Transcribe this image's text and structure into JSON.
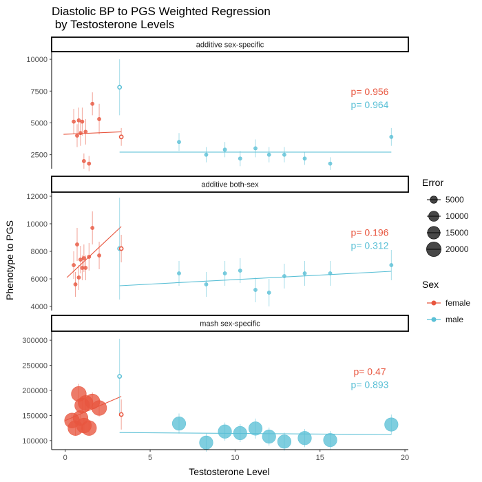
{
  "chart_data": {
    "type": "scatter",
    "title": [
      "Diastolic BP to PGS Weighted Regression",
      " by Testosterone Levels"
    ],
    "xlabel": "Testosterone Level",
    "ylabel": "Phenotype to PGS",
    "xlim": [
      -0.8,
      20.2
    ],
    "xticks": [
      0,
      5,
      10,
      15,
      20
    ],
    "grid": false,
    "colors": {
      "female": "#E8563F",
      "male": "#5BC0D6"
    },
    "legend": {
      "position": "right",
      "error": {
        "title": "Error",
        "entries": [
          {
            "label": "5000",
            "value": 5000
          },
          {
            "label": "10000",
            "value": 10000
          },
          {
            "label": "15000",
            "value": 15000
          },
          {
            "label": "20000",
            "value": 20000
          }
        ]
      },
      "sex": {
        "title": "Sex",
        "entries": [
          {
            "label": "female",
            "key": "female"
          },
          {
            "label": "male",
            "key": "male"
          }
        ]
      }
    },
    "panels": [
      {
        "strip": "additive sex-specific",
        "ylim": [
          1400,
          10600
        ],
        "yticks": [
          2500,
          5000,
          7500,
          10000
        ],
        "ytick_labels": [
          "2500",
          "5000",
          "7500",
          "10000"
        ],
        "pvalues": [
          {
            "sex": "female",
            "text": "p= 0.956"
          },
          {
            "sex": "male",
            "text": "p= 0.964"
          }
        ],
        "fits": [
          {
            "sex": "female",
            "x": [
              -0.1,
              3.3
            ],
            "y": [
              4100,
              4300
            ]
          },
          {
            "sex": "male",
            "x": [
              3.2,
              19.2
            ],
            "y": [
              2700,
              2700
            ]
          }
        ],
        "series": [
          {
            "sex": "female",
            "x": [
              0.5,
              0.7,
              0.8,
              0.9,
              1.0,
              1.1,
              1.2,
              1.4,
              1.6,
              2.0
            ],
            "y": [
              5100,
              4000,
              5200,
              4200,
              5100,
              2000,
              4300,
              1800,
              6500,
              5300
            ],
            "err": [
              1000,
              900,
              1000,
              1000,
              1100,
              600,
              1000,
              600,
              900,
              1200
            ],
            "size": [
              900,
              900,
              900,
              900,
              900,
              900,
              900,
              900,
              900,
              900
            ]
          },
          {
            "sex": "female",
            "x": [
              3.3
            ],
            "y": [
              3900
            ],
            "err": [
              700
            ],
            "size": [
              2200
            ],
            "hollow": true
          },
          {
            "sex": "male",
            "x": [
              3.2
            ],
            "y": [
              7800
            ],
            "err": [
              2200
            ],
            "size": [
              2200
            ],
            "hollow": true
          },
          {
            "sex": "male",
            "x": [
              6.7,
              8.3,
              9.4,
              10.3,
              11.2,
              12.0,
              12.9,
              14.1,
              15.6,
              19.2
            ],
            "y": [
              3500,
              2500,
              2900,
              2200,
              3000,
              2500,
              2500,
              2200,
              1800,
              3900
            ],
            "err": [
              700,
              600,
              600,
              600,
              700,
              600,
              600,
              500,
              500,
              700
            ],
            "size": [
              900,
              900,
              900,
              900,
              900,
              900,
              900,
              900,
              900,
              900
            ]
          }
        ]
      },
      {
        "strip": "additive both-sex",
        "ylim": [
          3700,
          12300
        ],
        "yticks": [
          4000,
          6000,
          8000,
          10000,
          12000
        ],
        "ytick_labels": [
          "4000",
          "6000",
          "8000",
          "10000",
          "12000"
        ],
        "pvalues": [
          {
            "sex": "female",
            "text": "p= 0.196"
          },
          {
            "sex": "male",
            "text": "p= 0.312"
          }
        ],
        "fits": [
          {
            "sex": "female",
            "x": [
              0.1,
              3.3
            ],
            "y": [
              6100,
              9800
            ]
          },
          {
            "sex": "male",
            "x": [
              3.2,
              19.2
            ],
            "y": [
              5500,
              6550
            ]
          }
        ],
        "series": [
          {
            "sex": "female",
            "x": [
              0.5,
              0.6,
              0.7,
              0.8,
              0.9,
              1.0,
              1.1,
              1.2,
              1.4,
              1.6,
              2.0
            ],
            "y": [
              7000,
              5600,
              8500,
              6100,
              7400,
              6800,
              7500,
              6800,
              7600,
              9700,
              7700
            ],
            "err": [
              1000,
              900,
              1200,
              900,
              1000,
              900,
              1000,
              900,
              1000,
              1200,
              1000
            ],
            "size": [
              900,
              900,
              900,
              900,
              900,
              900,
              900,
              900,
              900,
              900,
              900
            ]
          },
          {
            "sex": "male",
            "x": [
              3.2
            ],
            "y": [
              8200
            ],
            "err": [
              3700
            ],
            "size": [
              2200
            ],
            "hollow": true
          },
          {
            "sex": "female",
            "x": [
              3.3
            ],
            "y": [
              8200
            ],
            "err": [
              1000
            ],
            "size": [
              2200
            ],
            "hollow": true
          },
          {
            "sex": "male",
            "x": [
              6.7,
              8.3,
              9.4,
              10.3,
              11.2,
              12.0,
              12.9,
              14.1,
              15.6,
              19.2
            ],
            "y": [
              6400,
              5600,
              6400,
              6600,
              5200,
              5000,
              6200,
              6400,
              6400,
              7000
            ],
            "err": [
              900,
              900,
              900,
              900,
              900,
              1000,
              900,
              900,
              900,
              1100
            ],
            "size": [
              900,
              900,
              900,
              900,
              900,
              900,
              900,
              900,
              900,
              900
            ]
          }
        ]
      },
      {
        "strip": "mash sex-specific",
        "ylim": [
          82000,
          318000
        ],
        "yticks": [
          100000,
          150000,
          200000,
          250000,
          300000
        ],
        "ytick_labels": [
          "100000",
          "150000",
          "200000",
          "250000",
          "300000"
        ],
        "pvalues": [
          {
            "sex": "female",
            "text": "p= 0.47"
          },
          {
            "sex": "male",
            "text": "p= 0.893"
          }
        ],
        "fits": [
          {
            "sex": "female",
            "x": [
              0.0,
              3.3
            ],
            "y": [
              140000,
              188000
            ]
          },
          {
            "sex": "male",
            "x": [
              3.2,
              19.2
            ],
            "y": [
              116000,
              112000
            ]
          }
        ],
        "series": [
          {
            "sex": "female",
            "x": [
              0.4,
              0.6,
              0.8,
              0.9,
              1.0,
              1.1,
              1.2,
              1.4,
              1.6,
              2.0
            ],
            "y": [
              140000,
              125000,
              193000,
              145000,
              170000,
              130000,
              175000,
              125000,
              178000,
              165000
            ],
            "err": [
              15000,
              15000,
              20000,
              15000,
              17000,
              15000,
              18000,
              14000,
              18000,
              17000
            ],
            "size": [
              21000,
              21000,
              21000,
              21000,
              21000,
              21000,
              21000,
              21000,
              21000,
              21000
            ]
          },
          {
            "sex": "male",
            "x": [
              3.2
            ],
            "y": [
              228000
            ],
            "err": [
              75000
            ],
            "size": [
              2200
            ],
            "hollow": true
          },
          {
            "sex": "female",
            "x": [
              3.3
            ],
            "y": [
              152000
            ],
            "err": [
              30000
            ],
            "size": [
              2200
            ],
            "hollow": true
          },
          {
            "sex": "male",
            "x": [
              6.7,
              8.3,
              9.4,
              10.3,
              11.2,
              12.0,
              12.9,
              14.1,
              15.6,
              19.2
            ],
            "y": [
              134000,
              96000,
              118000,
              115000,
              124000,
              108000,
              98000,
              105000,
              101000,
              132000
            ],
            "err": [
              20000,
              18000,
              18000,
              18000,
              20000,
              18000,
              18000,
              18000,
              18000,
              20000
            ],
            "size": [
              17000,
              17000,
              17000,
              17000,
              17000,
              17000,
              17000,
              17000,
              17000,
              17000
            ]
          }
        ]
      }
    ]
  }
}
